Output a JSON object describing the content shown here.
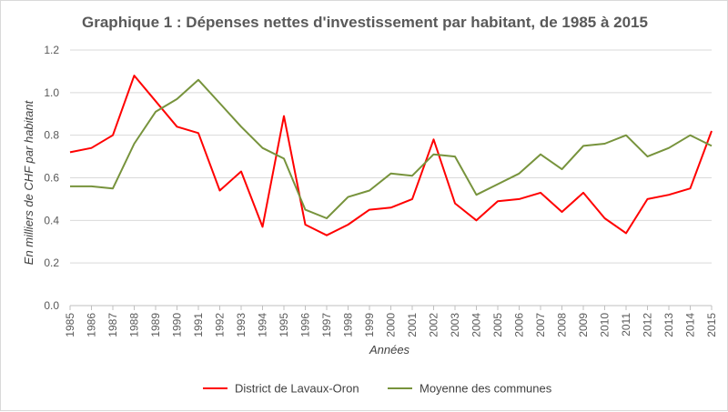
{
  "chart_data": {
    "type": "line",
    "title": "Graphique 1 : Dépenses nettes d'investissement par habitant, de 1985 à 2015",
    "xlabel": "Années",
    "ylabel": "En milliers de CHF par habitant",
    "ylim": [
      0,
      1.2
    ],
    "yticks": [
      "0.0",
      "0.2",
      "0.4",
      "0.6",
      "0.8",
      "1.0",
      "1.2"
    ],
    "grid": "horizontal",
    "legend_position": "bottom",
    "categories": [
      "1985",
      "1986",
      "1987",
      "1988",
      "1989",
      "1990",
      "1991",
      "1992",
      "1993",
      "1994",
      "1995",
      "1996",
      "1997",
      "1998",
      "1999",
      "2000",
      "2001",
      "2002",
      "2003",
      "2004",
      "2005",
      "2006",
      "2007",
      "2008",
      "2009",
      "2010",
      "2011",
      "2012",
      "2013",
      "2014",
      "2015"
    ],
    "series": [
      {
        "name": "District de Lavaux-Oron",
        "color": "#ff0000",
        "values": [
          0.72,
          0.74,
          0.8,
          1.08,
          0.96,
          0.84,
          0.81,
          0.54,
          0.63,
          0.37,
          0.89,
          0.38,
          0.33,
          0.38,
          0.45,
          0.46,
          0.5,
          0.78,
          0.48,
          0.4,
          0.49,
          0.5,
          0.53,
          0.44,
          0.53,
          0.41,
          0.34,
          0.5,
          0.52,
          0.55,
          0.82
        ]
      },
      {
        "name": "Moyenne des communes",
        "color": "#77933c",
        "values": [
          0.56,
          0.56,
          0.55,
          0.76,
          0.91,
          0.97,
          1.06,
          0.95,
          0.84,
          0.74,
          0.69,
          0.45,
          0.41,
          0.51,
          0.54,
          0.62,
          0.61,
          0.71,
          0.7,
          0.52,
          0.57,
          0.62,
          0.71,
          0.64,
          0.75,
          0.76,
          0.8,
          0.7,
          0.74,
          0.8,
          0.75
        ]
      }
    ]
  }
}
